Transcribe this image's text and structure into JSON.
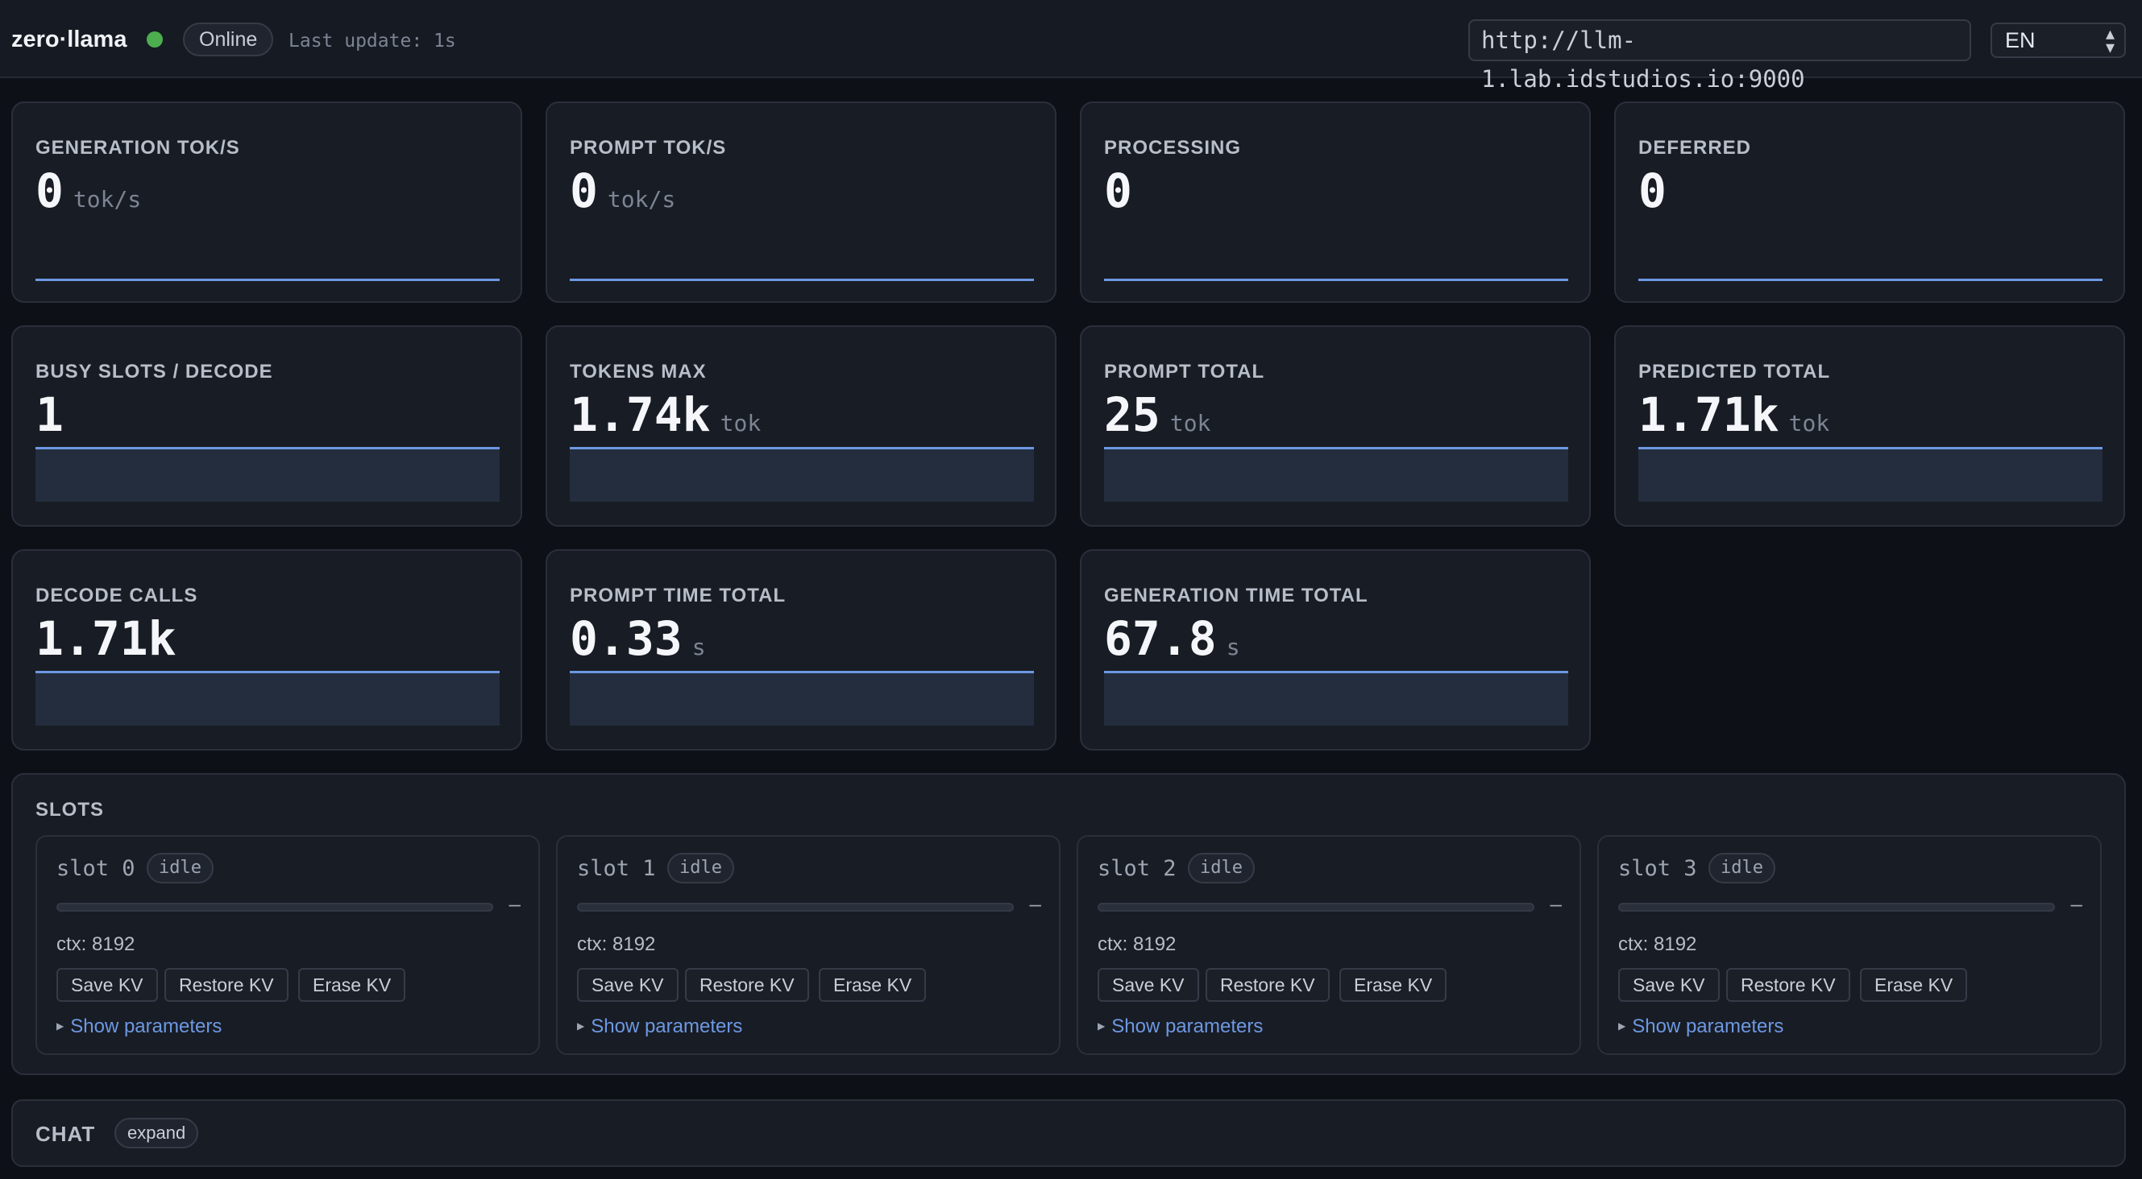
{
  "header": {
    "brand": "zero·llama",
    "status": "Online",
    "last_update": "Last update: 1s",
    "url": "http://llm-1.lab.idstudios.io:9000",
    "language": "EN"
  },
  "metrics": [
    {
      "label": "GENERATION TOK/S",
      "value": "0",
      "unit": "tok/s"
    },
    {
      "label": "PROMPT TOK/S",
      "value": "0",
      "unit": "tok/s"
    },
    {
      "label": "PROCESSING",
      "value": "0",
      "unit": ""
    },
    {
      "label": "DEFERRED",
      "value": "0",
      "unit": ""
    },
    {
      "label": "BUSY SLOTS / DECODE",
      "value": "1",
      "unit": ""
    },
    {
      "label": "TOKENS MAX",
      "value": "1.74k",
      "unit": "tok"
    },
    {
      "label": "PROMPT TOTAL",
      "value": "25",
      "unit": "tok"
    },
    {
      "label": "PREDICTED TOTAL",
      "value": "1.71k",
      "unit": "tok"
    },
    {
      "label": "DECODE CALLS",
      "value": "1.71k",
      "unit": ""
    },
    {
      "label": "PROMPT TIME TOTAL",
      "value": "0.33",
      "unit": "s"
    },
    {
      "label": "GENERATION TIME TOTAL",
      "value": "67.8",
      "unit": "s"
    }
  ],
  "slots": {
    "title": "SLOTS",
    "items": [
      {
        "name": "slot 0",
        "status": "idle",
        "dash": "–",
        "ctx": "ctx: 8192",
        "save": "Save KV",
        "restore": "Restore KV",
        "erase": "Erase KV",
        "params": "Show parameters"
      },
      {
        "name": "slot 1",
        "status": "idle",
        "dash": "–",
        "ctx": "ctx: 8192",
        "save": "Save KV",
        "restore": "Restore KV",
        "erase": "Erase KV",
        "params": "Show parameters"
      },
      {
        "name": "slot 2",
        "status": "idle",
        "dash": "–",
        "ctx": "ctx: 8192",
        "save": "Save KV",
        "restore": "Restore KV",
        "erase": "Erase KV",
        "params": "Show parameters"
      },
      {
        "name": "slot 3",
        "status": "idle",
        "dash": "–",
        "ctx": "ctx: 8192",
        "save": "Save KV",
        "restore": "Restore KV",
        "erase": "Erase KV",
        "params": "Show parameters"
      }
    ]
  },
  "chat": {
    "title": "CHAT",
    "expand": "expand"
  },
  "colors": {
    "accent": "#6d98e2",
    "online": "#4cae4f",
    "background": "#0d1016",
    "card": "#181c24"
  }
}
